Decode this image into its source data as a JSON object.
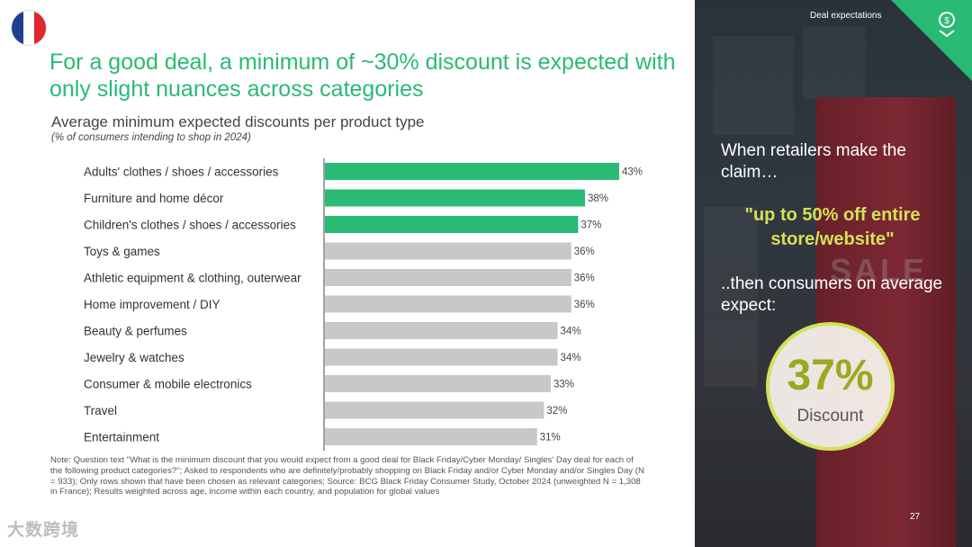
{
  "header": {
    "title": "For a good deal, a minimum of ~30% discount is expected with only slight nuances across categories"
  },
  "chart_data": {
    "type": "bar",
    "orientation": "horizontal",
    "title": "Average minimum expected discounts per product type",
    "subtitle": "(% of consumers intending to shop in 2024)",
    "categories": [
      "Adults' clothes / shoes / accessories",
      "Furniture and home décor",
      "Children's clothes / shoes / accessories",
      "Toys & games",
      "Athletic equipment & clothing, outerwear",
      "Home improvement / DIY",
      "Beauty & perfumes",
      "Jewelry & watches",
      "Consumer & mobile electronics",
      "Travel",
      "Entertainment"
    ],
    "values": [
      43,
      38,
      37,
      36,
      36,
      36,
      34,
      34,
      33,
      32,
      31
    ],
    "value_labels": [
      "43%",
      "38%",
      "37%",
      "36%",
      "36%",
      "36%",
      "34%",
      "34%",
      "33%",
      "32%",
      "31%"
    ],
    "highlighted_count": 3,
    "colors": {
      "highlight": "#29ba74",
      "default": "#c8c8c8"
    },
    "xlim": [
      0,
      50
    ],
    "grid": false,
    "legend": "none"
  },
  "note": "Note: Question text \"What is the minimum discount that you would expect from a good deal for Black Friday/Cyber Monday/ Singles' Day deal for each of the following product categories?\"; Asked to respondents who are definitely/probably shopping on Black Friday and/or Cyber Monday and/or Singles Day (N = 933); Only rows shown that have been chosen as relevant categories; Source: BCG Black Friday Consumer Study, October 2024 (unweighted N = 1,308 in France); Results weighted across age, income within each country, and population for global values",
  "watermark": "大数跨境",
  "side_panel": {
    "tag": "Deal expectations",
    "claim_intro": "When retailers make the claim…",
    "claim_quote": "\"up to 50% off entire store/website\"",
    "claim_outro": "..then consumers on average expect:",
    "sign_text": "SALE",
    "discount_value": "37%",
    "discount_label": "Discount",
    "page_number": "27"
  },
  "icons": {
    "flag": "france-flag-icon",
    "corner": "discount-tag-icon"
  }
}
